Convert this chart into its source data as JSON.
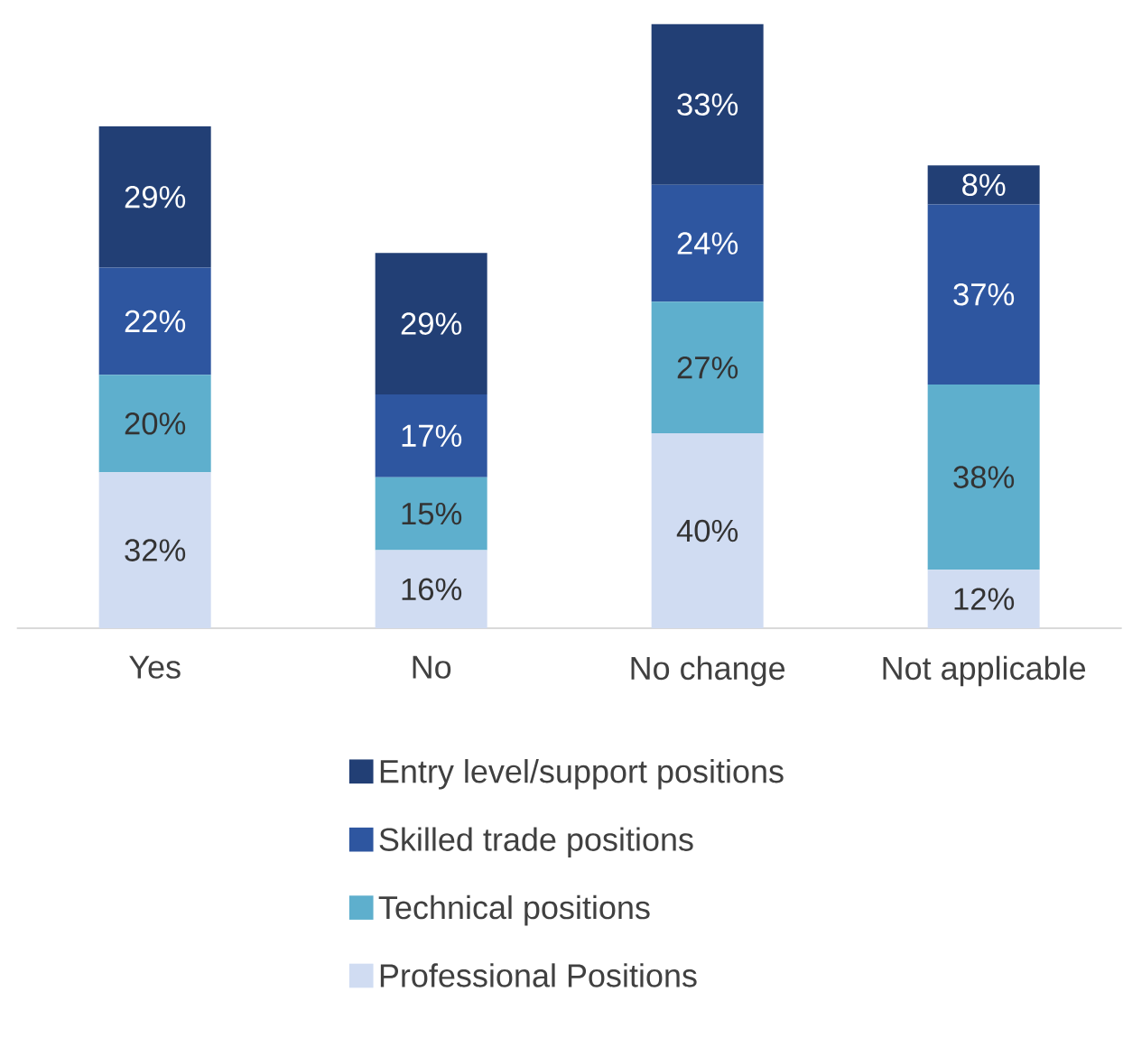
{
  "chart_data": {
    "type": "bar",
    "stacked": true,
    "legend": "bottom",
    "categories": [
      "Yes",
      "No",
      "No change",
      "Not applicable"
    ],
    "series": [
      {
        "name": "Professional Positions",
        "color": "#d0dcf2",
        "values": [
          32,
          16,
          40,
          12
        ],
        "value_labels": [
          "32%",
          "16%",
          "40%",
          "12%"
        ]
      },
      {
        "name": "Technical positions",
        "color": "#5eafcd",
        "values": [
          20,
          15,
          27,
          38
        ],
        "value_labels": [
          "20%",
          "15%",
          "27%",
          "38%"
        ]
      },
      {
        "name": "Skilled trade positions",
        "color": "#2e56a0",
        "values": [
          22,
          17,
          24,
          37
        ],
        "value_labels": [
          "22%",
          "17%",
          "24%",
          "37%"
        ]
      },
      {
        "name": "Entry level/support positions",
        "color": "#223f75",
        "values": [
          29,
          29,
          33,
          8
        ],
        "value_labels": [
          "29%",
          "29%",
          "33%",
          "8%"
        ]
      }
    ]
  }
}
